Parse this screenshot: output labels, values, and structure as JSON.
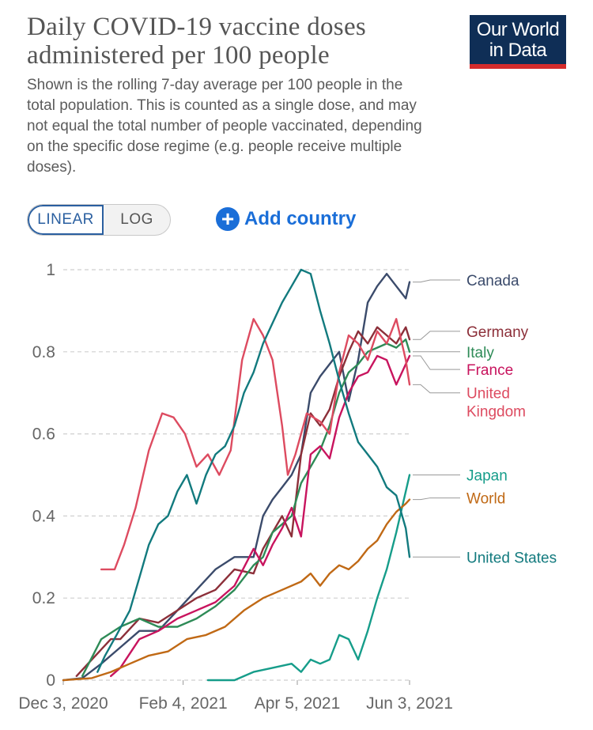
{
  "header": {
    "title": "Daily COVID-19 vaccine doses administered per 100 people",
    "subtitle": "Shown is the rolling 7-day average per 100 people in the total population. This is counted as a single dose, and may not equal the total number of people vaccinated, depending on the specific dose regime (e.g. people receive multiple doses).",
    "logo_line1": "Our World",
    "logo_line2": "in Data"
  },
  "controls": {
    "linear_label": "LINEAR",
    "log_label": "LOG",
    "add_country_label": "Add country",
    "add_icon": "plus-circle-icon"
  },
  "chart_data": {
    "type": "line",
    "title": "Daily COVID-19 vaccine doses administered per 100 people",
    "x_ticks": [
      "Dec 3, 2020",
      "Feb 4, 2021",
      "Apr 5, 2021",
      "Jun 3, 2021"
    ],
    "x_tick_days": [
      0,
      63,
      123,
      182
    ],
    "xlim_days": [
      0,
      182
    ],
    "y_ticks": [
      "0",
      "0.2",
      "0.4",
      "0.6",
      "0.8",
      "1"
    ],
    "ylim": [
      0,
      1
    ],
    "grid": true,
    "legend": "right-labels",
    "series": [
      {
        "name": "Canada",
        "color": "#3b4b6b",
        "x": [
          0,
          10,
          20,
          30,
          40,
          50,
          60,
          70,
          80,
          90,
          100,
          105,
          110,
          115,
          120,
          125,
          130,
          135,
          140,
          145,
          150,
          155,
          160,
          165,
          170,
          175,
          180,
          182
        ],
        "y": [
          0,
          0.005,
          0.04,
          0.08,
          0.12,
          0.12,
          0.17,
          0.22,
          0.27,
          0.3,
          0.3,
          0.4,
          0.44,
          0.47,
          0.5,
          0.55,
          0.7,
          0.74,
          0.77,
          0.8,
          0.68,
          0.78,
          0.92,
          0.96,
          0.99,
          0.96,
          0.93,
          0.97
        ]
      },
      {
        "name": "Germany",
        "color": "#8c2f39",
        "x": [
          7,
          15,
          25,
          30,
          40,
          50,
          60,
          70,
          80,
          90,
          100,
          105,
          110,
          115,
          120,
          125,
          130,
          135,
          140,
          145,
          150,
          155,
          160,
          165,
          170,
          175,
          180,
          182
        ],
        "y": [
          0.01,
          0.05,
          0.1,
          0.1,
          0.15,
          0.14,
          0.17,
          0.2,
          0.22,
          0.27,
          0.26,
          0.32,
          0.36,
          0.4,
          0.35,
          0.55,
          0.65,
          0.62,
          0.66,
          0.74,
          0.8,
          0.85,
          0.82,
          0.86,
          0.84,
          0.82,
          0.86,
          0.83
        ]
      },
      {
        "name": "Italy",
        "color": "#2e8b57",
        "x": [
          10,
          20,
          30,
          40,
          50,
          60,
          70,
          80,
          90,
          100,
          105,
          110,
          115,
          120,
          125,
          130,
          135,
          140,
          145,
          150,
          155,
          160,
          165,
          170,
          175,
          180,
          182
        ],
        "y": [
          0.01,
          0.1,
          0.13,
          0.15,
          0.13,
          0.13,
          0.15,
          0.18,
          0.22,
          0.28,
          0.3,
          0.36,
          0.38,
          0.4,
          0.48,
          0.52,
          0.56,
          0.62,
          0.7,
          0.75,
          0.77,
          0.8,
          0.81,
          0.82,
          0.81,
          0.83,
          0.8
        ]
      },
      {
        "name": "France",
        "color": "#c8145e",
        "x": [
          25,
          30,
          40,
          50,
          60,
          70,
          80,
          90,
          100,
          105,
          110,
          115,
          120,
          125,
          130,
          135,
          140,
          145,
          150,
          155,
          160,
          165,
          170,
          175,
          180,
          182
        ],
        "y": [
          0.01,
          0.03,
          0.1,
          0.12,
          0.15,
          0.17,
          0.19,
          0.23,
          0.32,
          0.28,
          0.33,
          0.37,
          0.42,
          0.35,
          0.55,
          0.57,
          0.54,
          0.64,
          0.7,
          0.74,
          0.75,
          0.79,
          0.78,
          0.72,
          0.77,
          0.79
        ]
      },
      {
        "name": "United Kingdom",
        "color": "#dd4b60",
        "x": [
          20,
          27,
          32,
          38,
          45,
          52,
          58,
          64,
          70,
          76,
          82,
          88,
          94,
          100,
          105,
          110,
          115,
          118,
          122,
          128,
          135,
          140,
          145,
          150,
          155,
          160,
          165,
          170,
          175,
          180,
          182
        ],
        "y": [
          0.27,
          0.27,
          0.33,
          0.42,
          0.56,
          0.65,
          0.64,
          0.6,
          0.52,
          0.55,
          0.5,
          0.56,
          0.78,
          0.88,
          0.84,
          0.78,
          0.62,
          0.5,
          0.55,
          0.65,
          0.63,
          0.6,
          0.75,
          0.84,
          0.82,
          0.78,
          0.85,
          0.82,
          0.88,
          0.78,
          0.72
        ]
      },
      {
        "name": "Japan",
        "color": "#169d8a",
        "x": [
          76,
          90,
          100,
          110,
          120,
          125,
          130,
          135,
          140,
          145,
          150,
          155,
          160,
          165,
          170,
          175,
          180,
          182
        ],
        "y": [
          0,
          0,
          0.02,
          0.03,
          0.04,
          0.02,
          0.05,
          0.04,
          0.05,
          0.11,
          0.1,
          0.05,
          0.12,
          0.2,
          0.27,
          0.36,
          0.46,
          0.5
        ]
      },
      {
        "name": "World",
        "color": "#c06915",
        "x": [
          0,
          15,
          25,
          35,
          45,
          55,
          65,
          75,
          85,
          95,
          105,
          115,
          125,
          130,
          135,
          140,
          145,
          150,
          155,
          160,
          165,
          170,
          175,
          180,
          182
        ],
        "y": [
          0,
          0.005,
          0.02,
          0.04,
          0.06,
          0.07,
          0.1,
          0.11,
          0.13,
          0.17,
          0.2,
          0.22,
          0.24,
          0.26,
          0.23,
          0.26,
          0.28,
          0.27,
          0.29,
          0.32,
          0.34,
          0.38,
          0.41,
          0.43,
          0.44
        ]
      },
      {
        "name": "United States",
        "color": "#127a7e",
        "x": [
          18,
          22,
          28,
          35,
          40,
          45,
          50,
          55,
          60,
          65,
          70,
          75,
          80,
          85,
          90,
          95,
          100,
          105,
          110,
          115,
          120,
          125,
          130,
          135,
          140,
          145,
          150,
          155,
          160,
          165,
          170,
          175,
          180,
          182
        ],
        "y": [
          0.02,
          0.06,
          0.11,
          0.17,
          0.25,
          0.33,
          0.38,
          0.4,
          0.46,
          0.5,
          0.43,
          0.5,
          0.55,
          0.57,
          0.62,
          0.7,
          0.75,
          0.82,
          0.87,
          0.92,
          0.96,
          1.0,
          0.99,
          0.9,
          0.82,
          0.73,
          0.65,
          0.58,
          0.55,
          0.52,
          0.47,
          0.45,
          0.37,
          0.3
        ]
      }
    ],
    "label_y": {
      "Canada": 0.975,
      "Germany": 0.85,
      "Italy": 0.8,
      "France": 0.757,
      "United Kingdom": 0.7,
      "Japan": 0.5,
      "World": 0.444,
      "United States": 0.3
    }
  }
}
